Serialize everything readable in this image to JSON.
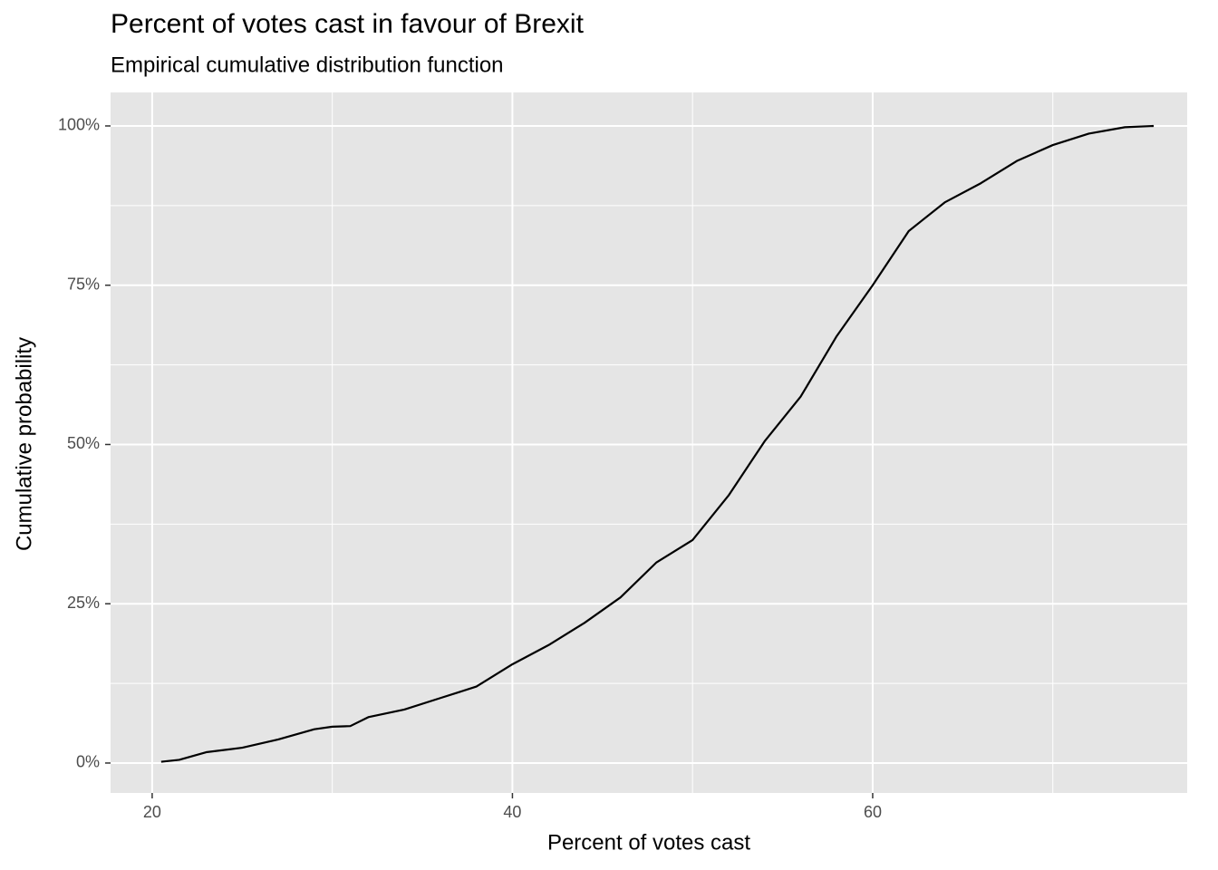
{
  "chart_data": {
    "type": "line",
    "title": "Percent of votes cast in favour of Brexit",
    "subtitle": "Empirical cumulative distribution function",
    "x_label": "Percent of votes cast",
    "y_label": "Cumulative probability",
    "x": [
      20.5,
      21.5,
      23,
      25,
      27,
      29,
      30,
      31,
      32,
      34,
      36,
      38,
      40,
      42,
      44,
      46,
      48,
      50,
      52,
      54,
      56,
      58,
      60,
      62,
      64,
      66,
      68,
      70,
      72,
      74,
      75.6
    ],
    "series": [
      {
        "color": "#000000",
        "values": [
          0.2,
          0.5,
          1.7,
          2.4,
          3.7,
          5.3,
          5.7,
          5.8,
          7.2,
          8.4,
          10.2,
          12,
          15.5,
          18.5,
          22,
          26,
          31.5,
          35,
          42,
          50.5,
          57.5,
          67,
          75,
          83.5,
          88,
          91,
          94.5,
          97,
          98.8,
          99.8,
          100
        ]
      }
    ],
    "xlim": [
      17.69,
      77.46
    ],
    "ylim": [
      -4.7,
      105.26
    ],
    "xticks": [
      20,
      40,
      60
    ],
    "yticks": [
      {
        "value": 0,
        "label": "0%"
      },
      {
        "value": 25,
        "label": "25%"
      },
      {
        "value": 50,
        "label": "50%"
      },
      {
        "value": 75,
        "label": "75%"
      },
      {
        "value": 100,
        "label": "100%"
      }
    ],
    "x_minor_ticks": [
      30,
      50,
      70
    ],
    "y_minor_ticks": [
      12.5,
      37.5,
      62.5,
      87.5
    ],
    "grid": true
  }
}
